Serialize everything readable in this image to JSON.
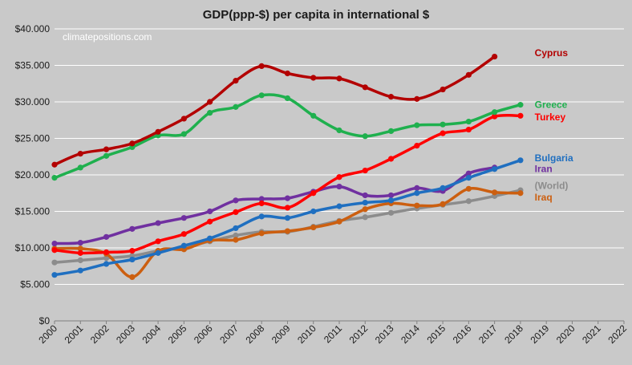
{
  "chart_data": {
    "type": "line",
    "title": "GDP(ppp-$) per capita in international $",
    "watermark": "climatepositions.com",
    "xlabel": "",
    "ylabel": "",
    "x_ticks": [
      "2000",
      "2001",
      "2002",
      "2003",
      "2004",
      "2005",
      "2006",
      "2007",
      "2008",
      "2009",
      "2010",
      "2011",
      "2012",
      "2013",
      "2014",
      "2015",
      "2016",
      "2017",
      "2018",
      "2019",
      "2020",
      "2021",
      "2022"
    ],
    "xlim": [
      2000,
      2022
    ],
    "ylim": [
      0,
      40000
    ],
    "y_ticks": [
      0,
      5000,
      10000,
      15000,
      20000,
      25000,
      30000,
      35000,
      40000
    ],
    "y_tick_labels": [
      "$0",
      "$5.000",
      "$10.000",
      "$15.000",
      "$20.000",
      "$25.000",
      "$30.000",
      "$35.000",
      "$40.000"
    ],
    "grid": "horizontal",
    "legend": "labels at line ends (right)",
    "series": [
      {
        "name": "Cyprus",
        "color": "#b30000",
        "x": [
          2000,
          2001,
          2002,
          2003,
          2004,
          2005,
          2006,
          2007,
          2008,
          2009,
          2010,
          2011,
          2012,
          2013,
          2014,
          2015,
          2016,
          2017
        ],
        "y": [
          21400,
          22900,
          23500,
          24300,
          25900,
          27700,
          30000,
          32900,
          34900,
          33900,
          33300,
          33200,
          32000,
          30700,
          30400,
          31700,
          33700,
          36200
        ]
      },
      {
        "name": "Greece",
        "color": "#1fb04e",
        "x": [
          2000,
          2001,
          2002,
          2003,
          2004,
          2005,
          2006,
          2007,
          2008,
          2009,
          2010,
          2011,
          2012,
          2013,
          2014,
          2015,
          2016,
          2017,
          2018
        ],
        "y": [
          19600,
          21000,
          22600,
          23800,
          25400,
          25600,
          28500,
          29300,
          30900,
          30500,
          28100,
          26100,
          25300,
          26000,
          26800,
          26900,
          27300,
          28600,
          29600
        ]
      },
      {
        "name": "Turkey",
        "color": "#ff0000",
        "x": [
          2000,
          2001,
          2002,
          2003,
          2004,
          2005,
          2006,
          2007,
          2008,
          2009,
          2010,
          2011,
          2012,
          2013,
          2014,
          2015,
          2016,
          2017,
          2018
        ],
        "y": [
          9700,
          9300,
          9400,
          9600,
          10900,
          11900,
          13600,
          14900,
          16100,
          15500,
          17500,
          19700,
          20600,
          22200,
          24000,
          25700,
          26200,
          28000,
          28100
        ]
      },
      {
        "name": "Bulgaria",
        "color": "#1f6fc0",
        "x": [
          2000,
          2001,
          2002,
          2003,
          2004,
          2005,
          2006,
          2007,
          2008,
          2009,
          2010,
          2011,
          2012,
          2013,
          2014,
          2015,
          2016,
          2017,
          2018
        ],
        "y": [
          6300,
          6900,
          7800,
          8400,
          9300,
          10300,
          11300,
          12700,
          14300,
          14100,
          15000,
          15700,
          16200,
          16500,
          17500,
          18200,
          19600,
          20800,
          22000
        ]
      },
      {
        "name": "Iran",
        "color": "#7030a0",
        "x": [
          2000,
          2001,
          2002,
          2003,
          2004,
          2005,
          2006,
          2007,
          2008,
          2009,
          2010,
          2011,
          2012,
          2013,
          2014,
          2015,
          2016,
          2017
        ],
        "y": [
          10600,
          10700,
          11500,
          12600,
          13400,
          14100,
          15000,
          16500,
          16700,
          16800,
          17700,
          18400,
          17200,
          17200,
          18200,
          17800,
          20200,
          21000
        ]
      },
      {
        "name": "(World)",
        "color": "#8c8c8c",
        "x": [
          2000,
          2001,
          2002,
          2003,
          2004,
          2005,
          2006,
          2007,
          2008,
          2009,
          2010,
          2011,
          2012,
          2013,
          2014,
          2015,
          2016,
          2017,
          2018
        ],
        "y": [
          8000,
          8300,
          8600,
          8900,
          9600,
          10100,
          10900,
          11700,
          12200,
          12200,
          12900,
          13700,
          14200,
          14800,
          15400,
          15900,
          16400,
          17100,
          17900
        ]
      },
      {
        "name": "Iraq",
        "color": "#cc5f10",
        "x": [
          2000,
          2001,
          2002,
          2003,
          2004,
          2005,
          2006,
          2007,
          2008,
          2009,
          2010,
          2011,
          2012,
          2013,
          2014,
          2015,
          2016,
          2017,
          2018
        ],
        "y": [
          9900,
          9900,
          9200,
          6000,
          9600,
          9800,
          11000,
          11100,
          12000,
          12300,
          12800,
          13600,
          15300,
          16100,
          15800,
          16000,
          18100,
          17600,
          17500
        ]
      }
    ],
    "end_labels": [
      {
        "series": "Cyprus",
        "label_y": 36700
      },
      {
        "series": "Greece",
        "label_y": 29600
      },
      {
        "series": "Turkey",
        "label_y": 27900
      },
      {
        "series": "Bulgaria",
        "label_y": 22300
      },
      {
        "series": "Iran",
        "label_y": 20800
      },
      {
        "series": "(World)",
        "label_y": 18500
      },
      {
        "series": "Iraq",
        "label_y": 16900
      }
    ]
  }
}
